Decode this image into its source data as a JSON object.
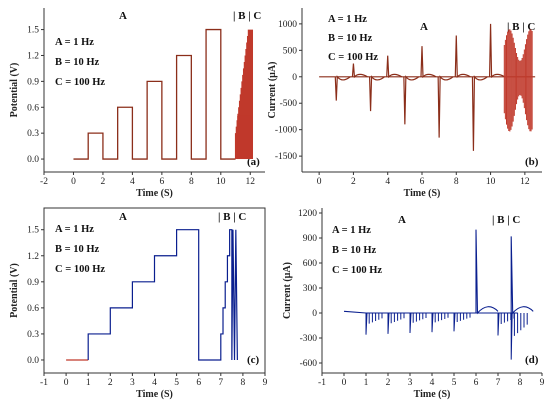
{
  "chart_data": [
    {
      "id": "a",
      "type": "line",
      "panel_tag": "(a)",
      "xlabel": "Time (S)",
      "ylabel": "Potential (V)",
      "xlim": [
        -2,
        13
      ],
      "ylim": [
        -0.15,
        1.75
      ],
      "xticks": [
        "-2",
        "0",
        "2",
        "4",
        "6",
        "8",
        "10",
        "12"
      ],
      "yticks": [
        "0.0",
        "0.3",
        "0.6",
        "0.9",
        "1.2",
        "1.5"
      ],
      "legend": [
        "A = 1 Hz",
        "B = 10 Hz",
        "C = 100 Hz"
      ],
      "annotations": [
        "A",
        "| B | C"
      ],
      "step_levels": [
        0.3,
        0.6,
        0.9,
        1.2,
        1.5
      ],
      "burst_window": [
        11.0,
        12.2
      ]
    },
    {
      "id": "b",
      "type": "line",
      "panel_tag": "(b)",
      "xlabel": "Time (S)",
      "ylabel": "Current (µA)",
      "xlim": [
        -1,
        13
      ],
      "ylim": [
        -1800,
        1300
      ],
      "xticks": [
        "0",
        "2",
        "4",
        "6",
        "8",
        "10",
        "12"
      ],
      "yticks": [
        "1000",
        "500",
        "0",
        "-500",
        "-1000",
        "-1500"
      ],
      "legend": [
        "A = 1 Hz",
        "B = 10 Hz",
        "C = 100 Hz"
      ],
      "annotations": [
        "A",
        "| B | C"
      ],
      "spikes": [
        {
          "t": 1.0,
          "down": -450
        },
        {
          "t": 2.0,
          "up": 250
        },
        {
          "t": 3.0,
          "down": -650
        },
        {
          "t": 4.0,
          "up": 400
        },
        {
          "t": 5.0,
          "down": -900
        },
        {
          "t": 6.0,
          "up": 580
        },
        {
          "t": 7.0,
          "down": -1150
        },
        {
          "t": 8.0,
          "up": 780
        },
        {
          "t": 9.0,
          "down": -1400
        },
        {
          "t": 10.0,
          "up": 1000
        }
      ]
    },
    {
      "id": "c",
      "type": "line",
      "panel_tag": "(c)",
      "xlabel": "Time (S)",
      "ylabel": "Potential (V)",
      "xlim": [
        -1,
        9
      ],
      "ylim": [
        -0.15,
        1.75
      ],
      "xticks": [
        "-1",
        "0",
        "1",
        "2",
        "3",
        "4",
        "5",
        "6",
        "7",
        "8",
        "9"
      ],
      "yticks": [
        "0.0",
        "0.3",
        "0.6",
        "0.9",
        "1.2",
        "1.5"
      ],
      "legend": [
        "A = 1 Hz",
        "B = 10 Hz",
        "C = 100 Hz"
      ],
      "annotations": [
        "A",
        "| B | C"
      ],
      "step_levels": [
        0.3,
        0.6,
        0.9,
        1.2,
        1.5
      ]
    },
    {
      "id": "d",
      "type": "line",
      "panel_tag": "(d)",
      "xlabel": "Time (S)",
      "ylabel": "Current (µA)",
      "xlim": [
        -1,
        9
      ],
      "ylim": [
        -720,
        1260
      ],
      "xticks": [
        "-1",
        "0",
        "1",
        "2",
        "3",
        "4",
        "5",
        "6",
        "7",
        "8",
        "9"
      ],
      "yticks": [
        "1200",
        "900",
        "600",
        "300",
        "0",
        "-300",
        "-600"
      ],
      "legend": [
        "A = 1 Hz",
        "B = 10 Hz",
        "C = 100 Hz"
      ],
      "annotations": [
        "A",
        "| B | C"
      ],
      "spikes": [
        {
          "t": 1.0,
          "down": -260
        },
        {
          "t": 2.0,
          "down": -250
        },
        {
          "t": 3.0,
          "down": -240
        },
        {
          "t": 4.0,
          "down": -230
        },
        {
          "t": 5.0,
          "down": -220
        },
        {
          "t": 6.0,
          "up": 1000
        },
        {
          "t": 7.0,
          "down": -270
        },
        {
          "t": 7.6,
          "up": 920,
          "down": -560
        }
      ]
    }
  ],
  "colors": {
    "red": "#c0392b",
    "brown": "#8b2e1a",
    "blue": "#0a1f8f",
    "axis": "#333333"
  }
}
